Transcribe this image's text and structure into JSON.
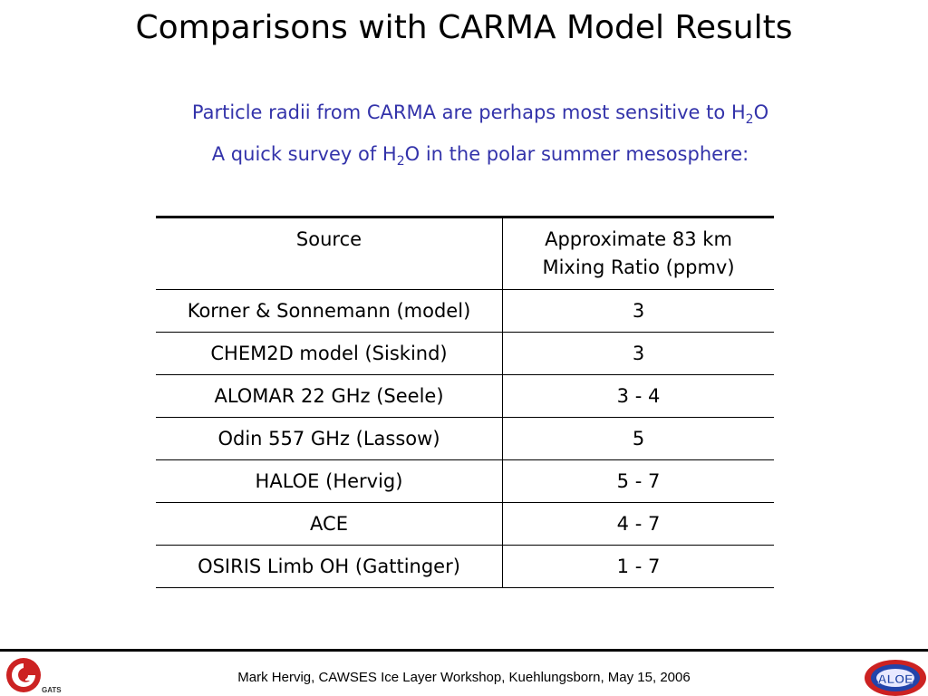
{
  "slide": {
    "title": "Comparisons with CARMA Model Results",
    "line1": {
      "text": "Particle radii from CARMA are perhaps most sensitive to H",
      "sub": "2",
      "tail": "O"
    },
    "line2": {
      "text": "A quick survey of H",
      "sub": "2",
      "tail": "O in the polar summer mesosphere:"
    }
  },
  "table": {
    "headers": [
      "Source",
      "Approximate 83 km",
      "Mixing Ratio (ppmv)"
    ],
    "rows": [
      [
        "Korner & Sonnemann (model)",
        "3"
      ],
      [
        "CHEM2D model (Siskind)",
        "3"
      ],
      [
        "ALOMAR 22 GHz (Seele)",
        "3 - 4"
      ],
      [
        "Odin 557 GHz (Lassow)",
        "5"
      ],
      [
        "HALOE (Hervig)",
        "5 - 7"
      ],
      [
        "ACE",
        "4 - 7"
      ],
      [
        "OSIRIS Limb OH (Gattinger)",
        "1 - 7"
      ]
    ]
  },
  "footer": {
    "text": "Mark Hervig, CAWSES Ice Layer Workshop, Kuehlungsborn, May 15, 2006",
    "left_logo_text": "GATS",
    "right_logo_text": "ALOE"
  },
  "colors": {
    "subtitle": "#3333aa",
    "logo_red": "#cc2222",
    "logo_blue": "#2244aa"
  }
}
